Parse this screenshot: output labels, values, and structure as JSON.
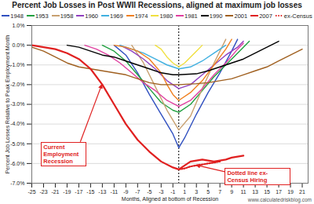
{
  "chart_data": {
    "type": "line",
    "title": "Percent Job Losses in Post WWII Recessions, aligned at maximum job losses",
    "x_label": "Months, Aligned at bottom of Recession",
    "y_label": "Percent Job Losses Relative to Peak Employment Month",
    "source": "www.calculatedriskblog.com",
    "xlim": [
      -25,
      22
    ],
    "xticks": [
      -25,
      -23,
      -21,
      -19,
      -17,
      -15,
      -13,
      -11,
      -9,
      -7,
      -5,
      -3,
      -1,
      1,
      3,
      5,
      7,
      9,
      11,
      13,
      15,
      17,
      19,
      21
    ],
    "ylim": [
      -7,
      1
    ],
    "yticks": [
      {
        "value": -7,
        "label": "-7.0%"
      },
      {
        "value": -6,
        "label": "-6.0%"
      },
      {
        "value": -5,
        "label": "-5.0%"
      },
      {
        "value": -4,
        "label": "-4.0%"
      },
      {
        "value": -3,
        "label": "-3.0%"
      },
      {
        "value": -2,
        "label": "-2.0%"
      },
      {
        "value": -1,
        "label": "-1.0%"
      },
      {
        "value": 0,
        "label": "0.0%"
      },
      {
        "value": 1,
        "label": "1.0%"
      }
    ],
    "grid": true,
    "legend": "top",
    "annotations": [
      {
        "text": "Current Employment Recession",
        "series": "2007"
      },
      {
        "text": "Dotted line ex-Census Hiring",
        "series": "ex-Census"
      }
    ],
    "series": [
      {
        "name": "1948",
        "color": "#3050c0",
        "x": [
          -11,
          -9,
          -7,
          -5,
          -3,
          -1,
          0,
          1,
          3,
          5,
          7,
          9,
          10
        ],
        "values": [
          0,
          -0.5,
          -1.4,
          -2.5,
          -3.5,
          -4.5,
          -5.2,
          -4.7,
          -3.5,
          -2.4,
          -1.4,
          -0.3,
          0.3
        ]
      },
      {
        "name": "1953",
        "color": "#20a040",
        "x": [
          -13,
          -11,
          -9,
          -7,
          -5,
          -3,
          -1,
          0,
          2,
          4,
          6,
          8,
          10,
          12
        ],
        "values": [
          0,
          -0.3,
          -0.8,
          -1.5,
          -2.2,
          -2.9,
          -3.3,
          -3.4,
          -3.0,
          -2.3,
          -1.6,
          -1.0,
          -0.4,
          0.2
        ]
      },
      {
        "name": "1958",
        "color": "#c8a070",
        "x": [
          -8,
          -6,
          -4,
          -2,
          0,
          2,
          4,
          6,
          8
        ],
        "values": [
          0,
          -0.9,
          -2.1,
          -3.3,
          -4.3,
          -3.6,
          -2.2,
          -0.9,
          0.3
        ]
      },
      {
        "name": "1960",
        "color": "#9040c0",
        "x": [
          -10,
          -8,
          -6,
          -4,
          -2,
          0,
          2,
          4,
          6,
          8,
          10,
          11
        ],
        "values": [
          0,
          -0.3,
          -0.7,
          -1.2,
          -1.8,
          -2.2,
          -2.0,
          -1.5,
          -1.0,
          -0.5,
          -0.1,
          0.2
        ]
      },
      {
        "name": "1969",
        "color": "#40b0e0",
        "x": [
          -10,
          -8,
          -6,
          -4,
          -2,
          0,
          2,
          4,
          6,
          8
        ],
        "values": [
          0,
          -0.2,
          -0.4,
          -0.7,
          -1.0,
          -1.2,
          -1.1,
          -0.8,
          -0.4,
          0.0
        ]
      },
      {
        "name": "1974",
        "color": "#f08020",
        "x": [
          -11,
          -9,
          -7,
          -5,
          -3,
          -2,
          -1,
          0,
          2,
          4,
          6,
          8,
          9
        ],
        "values": [
          0,
          -0.1,
          -0.3,
          -0.7,
          -1.4,
          -2.0,
          -2.5,
          -2.8,
          -2.4,
          -1.8,
          -1.0,
          -0.2,
          0.3
        ]
      },
      {
        "name": "1980",
        "color": "#f0e040",
        "x": [
          -4,
          -3,
          -2,
          -1,
          0,
          1,
          2,
          3,
          4
        ],
        "values": [
          0,
          -0.2,
          -0.6,
          -0.9,
          -1.1,
          -0.9,
          -0.6,
          -0.3,
          0
        ]
      },
      {
        "name": "1981",
        "color": "#e040a0",
        "x": [
          -16,
          -14,
          -12,
          -10,
          -8,
          -6,
          -4,
          -2,
          0,
          2,
          4,
          6,
          8,
          10,
          11
        ],
        "values": [
          0,
          -0.2,
          -0.5,
          -0.9,
          -1.4,
          -1.9,
          -2.3,
          -2.8,
          -3.1,
          -2.8,
          -2.2,
          -1.5,
          -0.9,
          -0.2,
          0.1
        ]
      },
      {
        "name": "1990",
        "color": "#000000",
        "x": [
          -19,
          -17,
          -15,
          -13,
          -11,
          -9,
          -7,
          -5,
          -3,
          -1,
          0,
          3,
          5,
          7,
          9,
          11,
          13,
          15,
          17
        ],
        "values": [
          0,
          -0.1,
          -0.3,
          -0.5,
          -0.6,
          -0.8,
          -1.0,
          -1.2,
          -1.4,
          -1.5,
          -1.5,
          -1.45,
          -1.3,
          -1.1,
          -0.9,
          -0.7,
          -0.4,
          -0.1,
          0.2
        ]
      },
      {
        "name": "2001",
        "color": "#a06020",
        "x": [
          -25,
          -23,
          -21,
          -19,
          -17,
          -15,
          -13,
          -11,
          -9,
          -7,
          -5,
          -3,
          -1,
          0,
          3,
          5,
          7,
          9,
          11,
          13,
          15,
          17,
          19,
          21
        ],
        "values": [
          -0.1,
          -0.3,
          -0.6,
          -0.9,
          -1.1,
          -1.2,
          -1.3,
          -1.4,
          -1.5,
          -1.7,
          -1.9,
          -2.0,
          -2.0,
          -2.0,
          -1.95,
          -1.9,
          -1.8,
          -1.7,
          -1.5,
          -1.3,
          -1.1,
          -0.8,
          -0.5,
          -0.2
        ]
      },
      {
        "name": "2007",
        "color": "#e02020",
        "x": [
          -25,
          -23,
          -21,
          -19,
          -17,
          -15,
          -13,
          -11,
          -9,
          -7,
          -5,
          -3,
          -1,
          0,
          1,
          2,
          3,
          4,
          5,
          6,
          7,
          8,
          9,
          10,
          11
        ],
        "values": [
          0,
          -0.1,
          -0.2,
          -0.4,
          -0.7,
          -1.2,
          -2.0,
          -3.0,
          -4.0,
          -4.8,
          -5.4,
          -5.9,
          -6.2,
          -6.3,
          -6.1,
          -5.9,
          -5.85,
          -5.8,
          -5.85,
          -5.9,
          -5.85,
          -5.8,
          -5.7,
          -5.65,
          -5.6
        ]
      },
      {
        "name": "ex-Census",
        "color": "#e02020",
        "line_style": "dotted",
        "x": [
          0,
          1,
          2,
          3,
          4,
          5,
          6,
          7
        ],
        "values": [
          -6.3,
          -6.25,
          -6.15,
          -6.1,
          -6.05,
          -6.0,
          -5.95,
          -5.9
        ]
      }
    ]
  }
}
